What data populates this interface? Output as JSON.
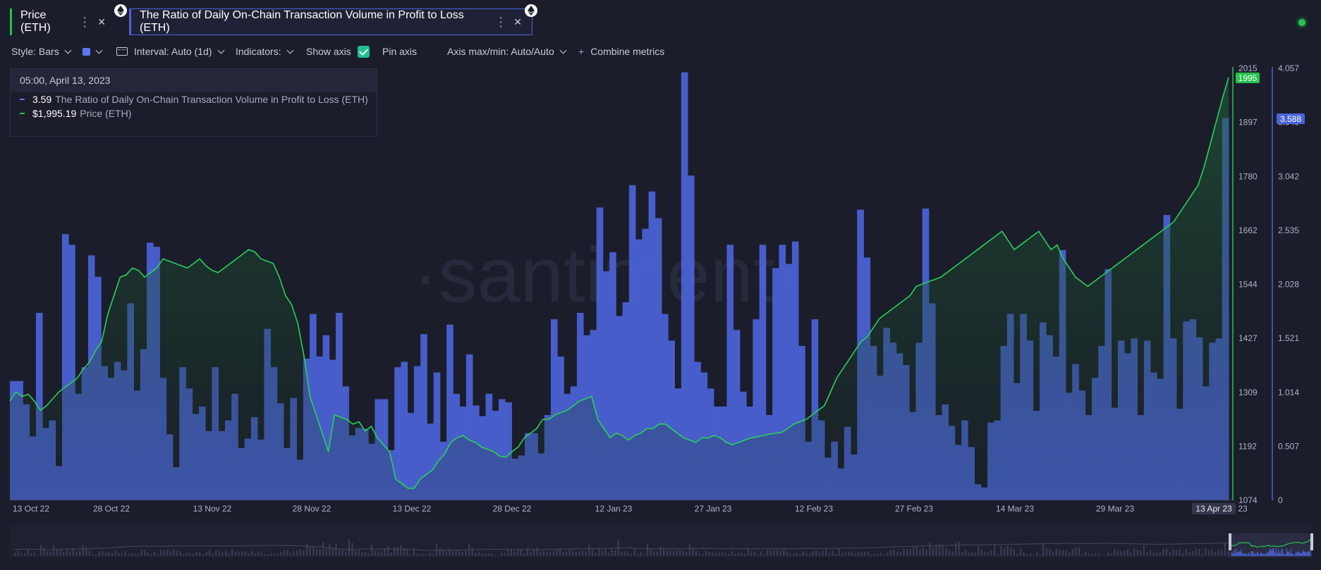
{
  "tabs": [
    {
      "label": "Price (ETH)",
      "color": "#26c34e"
    },
    {
      "label": "The Ratio of Daily On-Chain Transaction Volume in Profit to Loss (ETH)",
      "color": "#4b63d8"
    }
  ],
  "icons": {
    "tab_menu": "vertical-dots-icon",
    "tab_close": "close-icon",
    "eth": "ethereum-icon",
    "status": "status-dot-icon"
  },
  "toolbar": {
    "style": "Style: Bars",
    "interval": "Interval: Auto (1d)",
    "indicators": "Indicators:",
    "show_axis": "Show axis",
    "pin_axis": "Pin axis",
    "axis_maxmin": "Axis max/min: Auto/Auto",
    "combine": "Combine metrics",
    "combine_prefix": "+"
  },
  "tooltip": {
    "date": "05:00, April 13, 2023",
    "rows": [
      {
        "value": "3.59",
        "label": "The Ratio of Daily On-Chain Transaction Volume in Profit to Loss (ETH)",
        "color": "#5b76ee"
      },
      {
        "value": "$1,995.19",
        "label": "Price (ETH)",
        "color": "#26c34e"
      }
    ]
  },
  "watermark": "·santiment·",
  "chart_data": {
    "type": "bar+line",
    "x_range": [
      "2022-10-13",
      "2023-04-13"
    ],
    "x_ticks": [
      "13 Oct 22",
      "28 Oct 22",
      "13 Nov 22",
      "28 Nov 22",
      "13 Dec 22",
      "28 Dec 22",
      "12 Jan 23",
      "27 Jan 23",
      "12 Feb 23",
      "27 Feb 23",
      "14 Mar 23",
      "29 Mar 23",
      "13 Apr 23"
    ],
    "x_tick_tail": "23",
    "price_axis": {
      "ticks": [
        "2015",
        "1897",
        "1780",
        "1662",
        "1544",
        "1427",
        "1309",
        "1192",
        "1074"
      ],
      "min": 1074,
      "max": 2015,
      "current_label": "1995",
      "color": "#26c34e"
    },
    "ratio_axis": {
      "ticks": [
        "4.057",
        "3.549",
        "3.042",
        "2.535",
        "2.028",
        "1.521",
        "1.014",
        "0.507",
        "0"
      ],
      "min": 0,
      "max": 4.057,
      "current_label": "3.588",
      "color": "#4b63d8"
    },
    "series": [
      {
        "name": "The Ratio of Daily On-Chain Transaction Volume in Profit to Loss (ETH)",
        "kind": "bar",
        "color": "#4b63d8",
        "values": [
          1.12,
          1.12,
          0.9,
          0.6,
          1.76,
          0.68,
          0.75,
          0.32,
          2.5,
          2.4,
          1.0,
          1.25,
          2.3,
          2.1,
          1.26,
          1.15,
          1.3,
          1.22,
          1.85,
          1.03,
          1.42,
          2.42,
          2.38,
          1.15,
          0.62,
          0.31,
          1.25,
          1.05,
          0.81,
          0.88,
          0.65,
          1.25,
          0.65,
          0.75,
          1.0,
          0.49,
          0.58,
          0.78,
          0.57,
          1.61,
          1.25,
          0.91,
          0.49,
          0.96,
          0.38,
          1.33,
          1.75,
          1.35,
          1.55,
          1.32,
          1.76,
          1.07,
          0.61,
          0.68,
          0.67,
          0.53,
          0.95,
          0.95,
          0.47,
          1.25,
          1.3,
          0.82,
          1.26,
          1.56,
          0.72,
          1.2,
          0.55,
          1.65,
          1.0,
          0.88,
          1.37,
          0.89,
          0.79,
          1.0,
          0.84,
          0.95,
          0.92,
          0.39,
          0.42,
          0.63,
          0.63,
          0.44,
          0.8,
          1.7,
          1.35,
          1.0,
          1.07,
          1.76,
          1.55,
          1.6,
          2.75,
          2.15,
          2.33,
          1.73,
          1.86,
          2.96,
          2.45,
          2.55,
          2.9,
          2.65,
          1.75,
          1.5,
          1.05,
          4.02,
          3.05,
          1.3,
          1.2,
          1.05,
          0.88,
          0.88,
          2.4,
          1.6,
          1.02,
          0.88,
          1.7,
          2.4,
          0.8,
          2.18,
          2.4,
          2.22,
          2.43,
          1.45,
          0.55,
          1.7,
          0.75,
          0.4,
          0.55,
          0.3,
          0.69,
          0.43,
          2.73,
          2.28,
          1.45,
          1.17,
          1.62,
          1.48,
          1.38,
          1.27,
          0.83,
          1.48,
          2.74,
          1.85,
          0.8,
          0.9,
          0.7,
          0.52,
          0.75,
          0.5,
          0.15,
          0.12,
          0.73,
          0.75,
          1.45,
          1.75,
          1.1,
          1.75,
          1.5,
          0.84,
          1.67,
          1.55,
          1.35,
          2.35,
          1.01,
          1.28,
          1.03,
          0.8,
          1.15,
          1.45,
          2.17,
          0.87,
          1.5,
          1.38,
          1.52,
          0.8,
          1.5,
          1.2,
          1.14,
          2.68,
          1.52,
          0.86,
          1.68,
          1.7,
          1.53,
          1.07,
          1.48,
          1.52,
          3.59
        ]
      },
      {
        "name": "Price (ETH)",
        "kind": "line",
        "color": "#26c34e",
        "values": [
          1290,
          1310,
          1300,
          1305,
          1290,
          1270,
          1280,
          1295,
          1310,
          1320,
          1330,
          1340,
          1360,
          1375,
          1400,
          1420,
          1480,
          1520,
          1560,
          1565,
          1580,
          1575,
          1560,
          1570,
          1580,
          1600,
          1595,
          1590,
          1585,
          1580,
          1590,
          1600,
          1585,
          1575,
          1570,
          1580,
          1590,
          1600,
          1610,
          1620,
          1615,
          1600,
          1595,
          1590,
          1560,
          1520,
          1500,
          1460,
          1390,
          1300,
          1260,
          1220,
          1180,
          1260,
          1255,
          1250,
          1240,
          1245,
          1225,
          1235,
          1210,
          1195,
          1180,
          1120,
          1110,
          1100,
          1100,
          1120,
          1130,
          1140,
          1160,
          1175,
          1200,
          1210,
          1215,
          1205,
          1200,
          1190,
          1185,
          1180,
          1170,
          1168,
          1180,
          1190,
          1210,
          1220,
          1230,
          1250,
          1250,
          1260,
          1265,
          1270,
          1280,
          1290,
          1295,
          1300,
          1250,
          1230,
          1210,
          1220,
          1215,
          1205,
          1215,
          1220,
          1230,
          1230,
          1240,
          1240,
          1230,
          1220,
          1210,
          1205,
          1200,
          1210,
          1210,
          1215,
          1210,
          1200,
          1195,
          1200,
          1205,
          1210,
          1212,
          1215,
          1218,
          1220,
          1222,
          1230,
          1240,
          1245,
          1250,
          1260,
          1270,
          1280,
          1310,
          1340,
          1360,
          1380,
          1400,
          1420,
          1430,
          1450,
          1470,
          1480,
          1490,
          1500,
          1510,
          1520,
          1540,
          1545,
          1550,
          1555,
          1560,
          1570,
          1580,
          1590,
          1600,
          1610,
          1620,
          1630,
          1640,
          1650,
          1660,
          1640,
          1620,
          1630,
          1640,
          1650,
          1660,
          1640,
          1620,
          1630,
          1600,
          1580,
          1560,
          1550,
          1540,
          1550,
          1560,
          1570,
          1580,
          1590,
          1600,
          1610,
          1620,
          1630,
          1640,
          1650,
          1660,
          1670,
          1680,
          1700,
          1720,
          1740,
          1760,
          1800,
          1850,
          1900,
          1950,
          1995.19
        ]
      }
    ]
  }
}
